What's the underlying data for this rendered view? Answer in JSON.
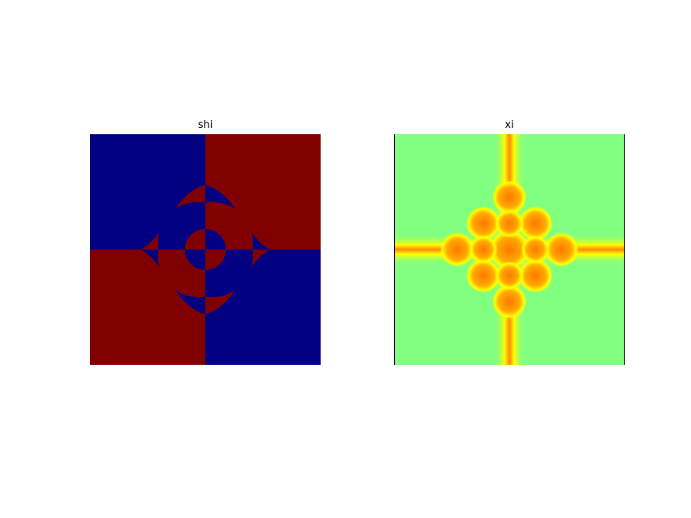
{
  "chart_data": [
    {
      "type": "image",
      "title": "shi"
    },
    {
      "type": "image",
      "title": "xi"
    }
  ]
}
